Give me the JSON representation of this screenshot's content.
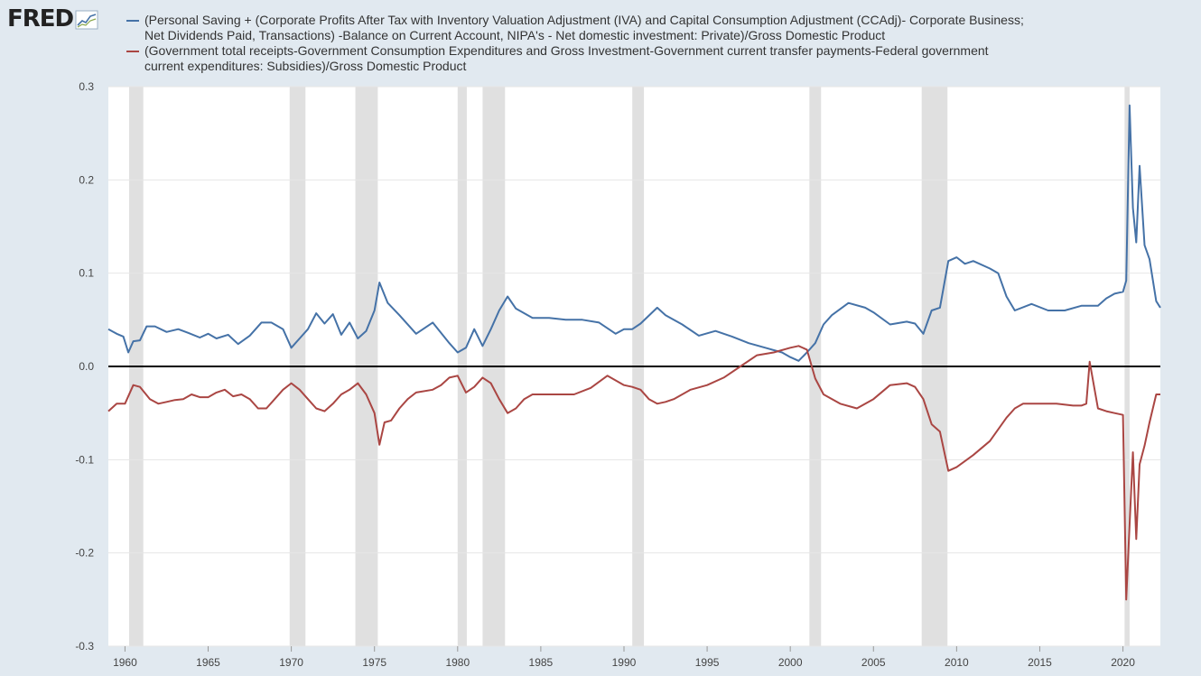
{
  "logo": {
    "text": "FRED",
    "icon": "chart-line-icon"
  },
  "colors": {
    "series1": "#4572a7",
    "series2": "#aa4643",
    "recession": "#e0e0e0",
    "zero": "#000000",
    "grid": "#e6e6e6",
    "background": "#e1e9f0"
  },
  "chart_data": {
    "type": "line",
    "title": "",
    "xlabel": "",
    "ylabel": "",
    "xlim": [
      1959.0,
      2022.25
    ],
    "ylim": [
      -0.3,
      0.3
    ],
    "yticks": [
      "0.3",
      "0.2",
      "0.1",
      "0.0",
      "-0.1",
      "-0.2",
      "-0.3"
    ],
    "xticks": [
      "1960",
      "1965",
      "1970",
      "1975",
      "1980",
      "1985",
      "1990",
      "1995",
      "2000",
      "2005",
      "2010",
      "2015",
      "2020"
    ],
    "recessions": [
      [
        1960.25,
        1961.1
      ],
      [
        1969.9,
        1970.85
      ],
      [
        1973.85,
        1975.2
      ],
      [
        1980.0,
        1980.55
      ],
      [
        1981.5,
        1982.85
      ],
      [
        1990.5,
        1991.2
      ],
      [
        2001.15,
        2001.85
      ],
      [
        2007.9,
        2009.45
      ],
      [
        2020.1,
        2020.4
      ]
    ],
    "series": [
      {
        "name": "(Personal Saving + (Corporate Profits After Tax with Inventory Valuation Adjustment (IVA) and Capital Consumption Adjustment (CCAdj)- Corporate Business; Net Dividends Paid, Transactions) -Balance on Current Account, NIPA's - Net domestic investment: Private)/Gross Domestic Product",
        "x": [
          1959.0,
          1959.5,
          1959.9,
          1960.2,
          1960.5,
          1960.9,
          1961.3,
          1961.8,
          1962.5,
          1963.2,
          1963.8,
          1964.5,
          1965.0,
          1965.5,
          1966.2,
          1966.8,
          1967.5,
          1968.2,
          1968.8,
          1969.5,
          1970.0,
          1970.5,
          1971.0,
          1971.5,
          1972.0,
          1972.5,
          1973.0,
          1973.5,
          1974.0,
          1974.5,
          1975.0,
          1975.3,
          1975.8,
          1976.5,
          1977.5,
          1978.5,
          1979.5,
          1980.0,
          1980.5,
          1981.0,
          1981.5,
          1982.0,
          1982.5,
          1983.0,
          1983.5,
          1984.5,
          1985.5,
          1986.5,
          1987.5,
          1988.5,
          1989.5,
          1990.0,
          1990.5,
          1991.0,
          1992.0,
          1992.5,
          1993.5,
          1994.5,
          1995.5,
          1996.5,
          1997.5,
          1998.5,
          1999.5,
          2000.0,
          2000.5,
          2001.0,
          2001.5,
          2002.0,
          2002.5,
          2003.5,
          2004.5,
          2005.0,
          2006.0,
          2007.0,
          2007.5,
          2008.0,
          2008.5,
          2009.0,
          2009.5,
          2010.0,
          2010.5,
          2011.0,
          2012.0,
          2012.5,
          2013.0,
          2013.5,
          2014.5,
          2015.5,
          2016.5,
          2017.5,
          2018.5,
          2019.0,
          2019.5,
          2020.0,
          2020.2,
          2020.4,
          2020.6,
          2020.8,
          2021.0,
          2021.3,
          2021.6,
          2022.0,
          2022.25
        ],
        "values": [
          0.04,
          0.035,
          0.032,
          0.015,
          0.027,
          0.028,
          0.043,
          0.043,
          0.037,
          0.04,
          0.036,
          0.031,
          0.035,
          0.03,
          0.034,
          0.024,
          0.033,
          0.047,
          0.047,
          0.04,
          0.02,
          0.03,
          0.04,
          0.057,
          0.046,
          0.056,
          0.034,
          0.047,
          0.03,
          0.038,
          0.06,
          0.09,
          0.068,
          0.055,
          0.035,
          0.047,
          0.025,
          0.015,
          0.02,
          0.04,
          0.022,
          0.04,
          0.06,
          0.075,
          0.062,
          0.052,
          0.052,
          0.05,
          0.05,
          0.047,
          0.035,
          0.04,
          0.04,
          0.046,
          0.063,
          0.055,
          0.045,
          0.033,
          0.038,
          0.032,
          0.025,
          0.02,
          0.015,
          0.01,
          0.006,
          0.015,
          0.025,
          0.045,
          0.055,
          0.068,
          0.063,
          0.058,
          0.045,
          0.048,
          0.046,
          0.035,
          0.06,
          0.063,
          0.113,
          0.117,
          0.11,
          0.113,
          0.105,
          0.1,
          0.075,
          0.06,
          0.067,
          0.06,
          0.06,
          0.065,
          0.065,
          0.073,
          0.078,
          0.08,
          0.092,
          0.28,
          0.17,
          0.133,
          0.215,
          0.13,
          0.115,
          0.07,
          0.063
        ]
      },
      {
        "name": "(Government total receipts-Government Consumption Expenditures and Gross Investment-Government current transfer payments-Federal government current expenditures: Subsidies)/Gross Domestic Product",
        "x": [
          1959.0,
          1959.5,
          1960.0,
          1960.5,
          1960.9,
          1961.5,
          1962.0,
          1962.5,
          1963.0,
          1963.5,
          1964.0,
          1964.5,
          1965.0,
          1965.5,
          1966.0,
          1966.5,
          1967.0,
          1967.5,
          1968.0,
          1968.5,
          1969.0,
          1969.5,
          1970.0,
          1970.5,
          1971.0,
          1971.5,
          1972.0,
          1972.5,
          1973.0,
          1973.5,
          1974.0,
          1974.5,
          1975.0,
          1975.3,
          1975.6,
          1976.0,
          1976.5,
          1977.0,
          1977.5,
          1978.5,
          1979.0,
          1979.5,
          1980.0,
          1980.5,
          1981.0,
          1981.5,
          1982.0,
          1982.5,
          1983.0,
          1983.5,
          1984.0,
          1984.5,
          1985.0,
          1986.0,
          1987.0,
          1988.0,
          1989.0,
          1990.0,
          1990.5,
          1991.0,
          1991.5,
          1992.0,
          1992.5,
          1993.0,
          1994.0,
          1995.0,
          1996.0,
          1997.0,
          1998.0,
          1999.0,
          2000.0,
          2000.5,
          2001.0,
          2001.5,
          2002.0,
          2003.0,
          2004.0,
          2005.0,
          2006.0,
          2007.0,
          2007.5,
          2008.0,
          2008.5,
          2009.0,
          2009.5,
          2010.0,
          2011.0,
          2012.0,
          2013.0,
          2013.5,
          2014.0,
          2015.0,
          2016.0,
          2017.0,
          2017.5,
          2017.8,
          2018.0,
          2018.5,
          2019.0,
          2019.5,
          2020.0,
          2020.2,
          2020.4,
          2020.6,
          2020.8,
          2021.0,
          2021.3,
          2021.6,
          2022.0,
          2022.25
        ],
        "values": [
          -0.048,
          -0.04,
          -0.04,
          -0.02,
          -0.022,
          -0.035,
          -0.04,
          -0.038,
          -0.036,
          -0.035,
          -0.03,
          -0.033,
          -0.033,
          -0.028,
          -0.025,
          -0.032,
          -0.03,
          -0.035,
          -0.045,
          -0.045,
          -0.035,
          -0.025,
          -0.018,
          -0.025,
          -0.035,
          -0.045,
          -0.048,
          -0.04,
          -0.03,
          -0.025,
          -0.018,
          -0.03,
          -0.05,
          -0.084,
          -0.06,
          -0.058,
          -0.045,
          -0.035,
          -0.028,
          -0.025,
          -0.02,
          -0.012,
          -0.01,
          -0.028,
          -0.022,
          -0.012,
          -0.018,
          -0.035,
          -0.05,
          -0.045,
          -0.035,
          -0.03,
          -0.03,
          -0.03,
          -0.03,
          -0.023,
          -0.01,
          -0.02,
          -0.022,
          -0.025,
          -0.035,
          -0.04,
          -0.038,
          -0.035,
          -0.025,
          -0.02,
          -0.012,
          0.0,
          0.012,
          0.015,
          0.02,
          0.022,
          0.018,
          -0.013,
          -0.03,
          -0.04,
          -0.045,
          -0.035,
          -0.02,
          -0.018,
          -0.022,
          -0.035,
          -0.062,
          -0.07,
          -0.112,
          -0.108,
          -0.095,
          -0.08,
          -0.055,
          -0.045,
          -0.04,
          -0.04,
          -0.04,
          -0.042,
          -0.042,
          -0.04,
          0.005,
          -0.045,
          -0.048,
          -0.05,
          -0.052,
          -0.25,
          -0.17,
          -0.092,
          -0.185,
          -0.105,
          -0.085,
          -0.06,
          -0.03,
          -0.03
        ]
      }
    ]
  }
}
